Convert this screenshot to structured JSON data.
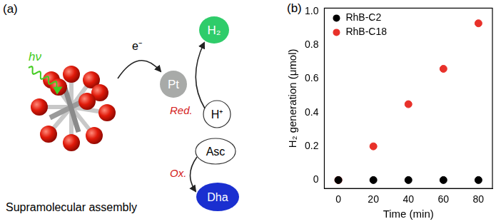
{
  "diagram": {
    "label": "(a)",
    "light": "hν",
    "electron": "e⁻",
    "catalyst": "Pt",
    "product": "H₂",
    "proton": "H⁺",
    "reduction": "Red.",
    "oxidation": "Ox.",
    "donor": "Asc",
    "oxidized_donor": "Dha",
    "caption": "Supramolecular assembly"
  },
  "chart_data": {
    "type": "scatter",
    "panel_label": "(b)",
    "x_label": "Time (min)",
    "y_label": "H₂ generation (μmol)",
    "x": [
      0,
      20,
      40,
      60,
      80
    ],
    "series": [
      {
        "name": "RhB-C2",
        "color": "#000000",
        "marker": "circle",
        "values": [
          0,
          0,
          0,
          0,
          0
        ]
      },
      {
        "name": "RhB-C18",
        "color": "#e8312a",
        "marker": "circle",
        "values": [
          0,
          0.2,
          0.45,
          0.66,
          0.93
        ]
      }
    ],
    "xlim": [
      -8,
      88
    ],
    "xticks": [
      0,
      20,
      40,
      60,
      80
    ],
    "ylim": [
      -0.05,
      1.02
    ],
    "yticks": [
      0,
      0.2,
      0.4,
      0.6,
      0.8,
      {
        "value": 1,
        "label": "1.0"
      }
    ],
    "grid": false,
    "legend": "upper left"
  }
}
